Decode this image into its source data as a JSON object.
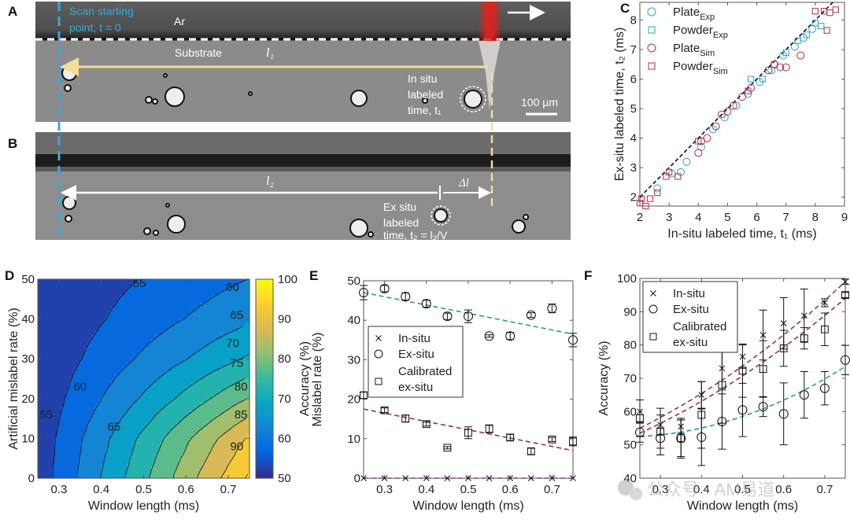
{
  "panel_a": {
    "label": "A",
    "scan_line1": "Scan starting",
    "scan_line2": "point, t = 0",
    "ar": "Ar",
    "substrate": "Substrate",
    "l1": "l₁",
    "insitu_1": "In situ",
    "insitu_2": "labeled",
    "insitu_3": "time, t₁",
    "scale": "100 µm",
    "colors": {
      "scan_line": "#3aa8d8",
      "laser": "#e3201b",
      "arrow": "#f2de97"
    }
  },
  "panel_b": {
    "label": "B",
    "l2": "l₂",
    "dl": "Δl",
    "exsitu_1": "Ex situ",
    "exsitu_2": "labeled",
    "exsitu_3": "time, t₂ = l₂/V"
  },
  "chart_data": [
    {
      "panel": "C",
      "type": "scatter",
      "xlabel": "In-situ labeled time, t₁ (ms)",
      "ylabel": "Ex-situ labeled time, t₂ (ms)",
      "xlim": [
        2,
        9
      ],
      "ylim": [
        1.7,
        8.6
      ],
      "xticks": [
        2,
        3,
        4,
        5,
        6,
        7,
        8,
        9
      ],
      "yticks": [
        2,
        3,
        4,
        5,
        6,
        7,
        8
      ],
      "legend_position": "top-left",
      "reference_line": "y = x",
      "series": [
        {
          "name": "Plate",
          "sub": "Exp",
          "marker": "circle",
          "color": "#2aa3c8",
          "points": [
            [
              2.6,
              2.3
            ],
            [
              3.1,
              2.8
            ],
            [
              3.4,
              2.85
            ],
            [
              3.6,
              3.2
            ],
            [
              4.1,
              3.7
            ],
            [
              4.5,
              4.3
            ],
            [
              4.9,
              4.7
            ],
            [
              5.3,
              5.1
            ],
            [
              5.7,
              5.5
            ],
            [
              6.1,
              5.9
            ],
            [
              6.5,
              6.3
            ],
            [
              6.9,
              6.8
            ],
            [
              7.3,
              7.1
            ],
            [
              7.6,
              7.4
            ],
            [
              7.9,
              7.7
            ]
          ]
        },
        {
          "name": "Powder",
          "sub": "Exp",
          "marker": "square",
          "color": "#2aa3c8",
          "points": [
            [
              5.8,
              6.0
            ],
            [
              6.2,
              6.0
            ],
            [
              6.6,
              6.5
            ],
            [
              7.0,
              6.9
            ],
            [
              7.4,
              7.3
            ],
            [
              7.7,
              7.5
            ],
            [
              8.0,
              7.9
            ],
            [
              8.2,
              7.8
            ]
          ]
        },
        {
          "name": "Plate",
          "sub": "Sim",
          "marker": "circle",
          "color": "#b02d4a",
          "points": [
            [
              4.0,
              3.5
            ],
            [
              4.1,
              3.9
            ],
            [
              4.3,
              4.0
            ],
            [
              4.6,
              4.4
            ],
            [
              4.8,
              4.8
            ],
            [
              5.0,
              4.9
            ],
            [
              5.2,
              5.1
            ],
            [
              5.5,
              5.4
            ],
            [
              5.8,
              5.7
            ],
            [
              6.4,
              6.3
            ],
            [
              6.6,
              6.5
            ],
            [
              6.8,
              6.4
            ],
            [
              7.0,
              6.4
            ],
            [
              7.5,
              6.8
            ]
          ]
        },
        {
          "name": "Powder",
          "sub": "Sim",
          "marker": "square",
          "color": "#b02d4a",
          "points": [
            [
              2.0,
              1.8
            ],
            [
              2.05,
              1.95
            ],
            [
              2.2,
              1.7
            ],
            [
              2.35,
              1.95
            ],
            [
              2.6,
              2.15
            ],
            [
              2.9,
              2.7
            ],
            [
              3.0,
              2.85
            ],
            [
              3.3,
              2.7
            ],
            [
              4.0,
              3.9
            ],
            [
              5.7,
              5.6
            ],
            [
              8.0,
              8.3
            ],
            [
              8.3,
              8.3
            ],
            [
              8.4,
              7.65
            ],
            [
              8.5,
              8.25
            ],
            [
              8.7,
              8.35
            ]
          ]
        }
      ]
    },
    {
      "panel": "D",
      "type": "heatmap",
      "subtype": "filled contour",
      "xlabel": "Window length (ms)",
      "ylabel": "Artificial mislabel rate (%)",
      "colorbar_label": "Accuracy (%)",
      "xlim": [
        0.25,
        0.75
      ],
      "ylim": [
        0,
        50
      ],
      "clim": [
        50,
        100
      ],
      "xticks": [
        0.3,
        0.4,
        0.5,
        0.6,
        0.7
      ],
      "yticks": [
        0,
        10,
        20,
        30,
        40,
        50
      ],
      "colorbar_ticks": [
        50,
        60,
        70,
        80,
        90,
        100
      ],
      "colormap": "parula",
      "levels": [
        55,
        60,
        65,
        70,
        75,
        80,
        85,
        90,
        95
      ],
      "level_labels": [
        "55",
        "55",
        "60",
        "60",
        "65",
        "65",
        "70",
        "75",
        "80",
        "85",
        "90"
      ],
      "grid_x": [
        0.25,
        0.35,
        0.45,
        0.55,
        0.65,
        0.75
      ],
      "grid_y": [
        0,
        10,
        20,
        30,
        40,
        50
      ],
      "z": [
        [
          52.0,
          60.8,
          69.6,
          78.4,
          87.2,
          96.0
        ],
        [
          51.8,
          59.6,
          67.4,
          75.3,
          83.1,
          90.9
        ],
        [
          51.3,
          57.1,
          62.9,
          68.7,
          74.6,
          80.4
        ],
        [
          50.9,
          54.9,
          58.9,
          62.9,
          66.9,
          70.8
        ],
        [
          50.6,
          53.3,
          56.1,
          58.8,
          61.5,
          64.3
        ],
        [
          50.4,
          52.4,
          54.3,
          56.2,
          58.2,
          60.1
        ]
      ]
    },
    {
      "panel": "E",
      "type": "scatter",
      "xlabel": "Window length (ms)",
      "ylabel": "Mislabel rate (%)",
      "xlim": [
        0.25,
        0.75
      ],
      "ylim": [
        0,
        50
      ],
      "xticks": [
        0.3,
        0.4,
        0.5,
        0.6,
        0.7
      ],
      "yticks": [
        0,
        10,
        20,
        30,
        40,
        50
      ],
      "legend_position": "center-left",
      "x": [
        0.25,
        0.3,
        0.35,
        0.4,
        0.45,
        0.5,
        0.55,
        0.6,
        0.65,
        0.7,
        0.75
      ],
      "series": [
        {
          "name": "In-situ",
          "marker": "x",
          "fit_color": "#8a3a8a",
          "values": [
            0,
            0,
            0,
            0,
            0,
            0,
            0,
            0,
            0,
            0,
            0
          ],
          "errors": [
            0,
            0,
            0,
            0,
            0,
            0,
            0,
            0,
            0,
            0,
            0
          ],
          "fit": [
            0,
            0
          ]
        },
        {
          "name": "Ex-situ",
          "marker": "circle",
          "fit_color": "#2f93b5",
          "values": [
            47,
            48,
            46,
            44.2,
            41,
            41,
            36,
            36,
            41.3,
            43,
            35
          ],
          "errors": [
            1.8,
            0.8,
            0.9,
            0.9,
            0.8,
            1.6,
            0.3,
            0.9,
            0.6,
            1.1,
            1.7
          ],
          "fit": [
            47,
            36.5
          ]
        },
        {
          "name": "Calibrated ex-situ",
          "label_lines": [
            "Calibrated",
            "ex-situ"
          ],
          "marker": "square",
          "fit_color": "#9a3048",
          "values": [
            21,
            17.2,
            15.1,
            13.7,
            7.7,
            11.5,
            12.5,
            10.3,
            6.8,
            9.8,
            9.3
          ],
          "errors": [
            0.8,
            0.6,
            0.9,
            0.5,
            0.3,
            1.5,
            1.0,
            0.8,
            0.8,
            0.5,
            1.1
          ],
          "fit": [
            17.5,
            7
          ]
        }
      ]
    },
    {
      "panel": "F",
      "type": "scatter",
      "xlabel": "Window length (ms)",
      "ylabel": "Accuracy (%)",
      "xlim": [
        0.25,
        0.75
      ],
      "ylim": [
        40,
        100
      ],
      "xticks": [
        0.3,
        0.4,
        0.5,
        0.6,
        0.7
      ],
      "yticks": [
        40,
        50,
        60,
        70,
        80,
        90,
        100
      ],
      "legend_position": "top-left",
      "x": [
        0.25,
        0.3,
        0.35,
        0.4,
        0.45,
        0.5,
        0.55,
        0.6,
        0.65,
        0.7,
        0.75
      ],
      "series": [
        {
          "name": "In-situ",
          "marker": "x",
          "fit_color": "#8a3a6a",
          "values": [
            60,
            56,
            55.5,
            65,
            73,
            76.5,
            83,
            86.5,
            88.8,
            92.7,
            99
          ],
          "errors": [
            3.5,
            3,
            2,
            4,
            6.5,
            3.5,
            7.5,
            7.7,
            8,
            1.2,
            0.8
          ],
          "fit": [
            55,
            99
          ]
        },
        {
          "name": "Ex-situ",
          "marker": "circle",
          "fit_color": "#2f93b5",
          "values": [
            53.8,
            52,
            52,
            52.3,
            57,
            60.5,
            61.5,
            59.3,
            65,
            67,
            75.5
          ],
          "errors": [
            3,
            3,
            6,
            8.5,
            8.3,
            8,
            3,
            9.3,
            7,
            5,
            4.4
          ],
          "fit": [
            52.5,
            73.5
          ]
        },
        {
          "name": "Calibrated ex-situ",
          "label_lines": [
            "Calibrated",
            "ex-situ"
          ],
          "marker": "square",
          "fit_color": "#9a3048",
          "values": [
            58,
            54,
            52,
            59,
            68,
            72.3,
            72.8,
            79,
            82,
            84.7,
            95
          ],
          "errors": [
            5.5,
            7,
            5.5,
            10,
            11.5,
            8,
            8.5,
            5.4,
            3.2,
            4.9,
            0.8
          ],
          "fit": [
            53.5,
            94
          ]
        }
      ]
    }
  ],
  "watermark": "公众号 · AM易道"
}
